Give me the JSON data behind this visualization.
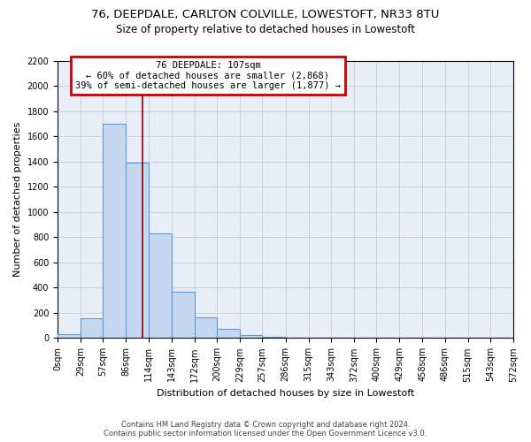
{
  "title1": "76, DEEPDALE, CARLTON COLVILLE, LOWESTOFT, NR33 8TU",
  "title2": "Size of property relative to detached houses in Lowestoft",
  "xlabel": "Distribution of detached houses by size in Lowestoft",
  "ylabel": "Number of detached properties",
  "footer1": "Contains HM Land Registry data © Crown copyright and database right 2024.",
  "footer2": "Contains public sector information licensed under the Open Government Licence v3.0.",
  "bin_edges": [
    0,
    29,
    57,
    86,
    114,
    143,
    172,
    200,
    229,
    257,
    286,
    315,
    343,
    372,
    400,
    429,
    458,
    486,
    515,
    543,
    572
  ],
  "bin_labels": [
    "0sqm",
    "29sqm",
    "57sqm",
    "86sqm",
    "114sqm",
    "143sqm",
    "172sqm",
    "200sqm",
    "229sqm",
    "257sqm",
    "286sqm",
    "315sqm",
    "343sqm",
    "372sqm",
    "400sqm",
    "429sqm",
    "458sqm",
    "486sqm",
    "515sqm",
    "543sqm",
    "572sqm"
  ],
  "bar_values": [
    30,
    155,
    1700,
    1390,
    830,
    370,
    165,
    70,
    25,
    10,
    5,
    3,
    2,
    2,
    2,
    2,
    1,
    1,
    1,
    1
  ],
  "bar_color": "#c5d8f0",
  "bar_edge_color": "#5b9bd5",
  "property_size": 107,
  "red_line_color": "#8b0000",
  "annotation_line1": "76 DEEPDALE: 107sqm",
  "annotation_line2": "← 60% of detached houses are smaller (2,868)",
  "annotation_line3": "39% of semi-detached houses are larger (1,877) →",
  "annotation_box_color": "white",
  "annotation_box_edge_color": "#cc0000",
  "ylim": [
    0,
    2200
  ],
  "yticks": [
    0,
    200,
    400,
    600,
    800,
    1000,
    1200,
    1400,
    1600,
    1800,
    2000,
    2200
  ],
  "grid_color": "#cccccc",
  "background_color": "#e8eef8",
  "fig_width": 6.0,
  "fig_height": 5.0,
  "title1_fontsize": 9.5,
  "title2_fontsize": 8.5,
  "ylabel_fontsize": 8,
  "xlabel_fontsize": 8,
  "tick_fontsize": 7,
  "annot_fontsize": 7.5,
  "footer_fontsize": 6
}
